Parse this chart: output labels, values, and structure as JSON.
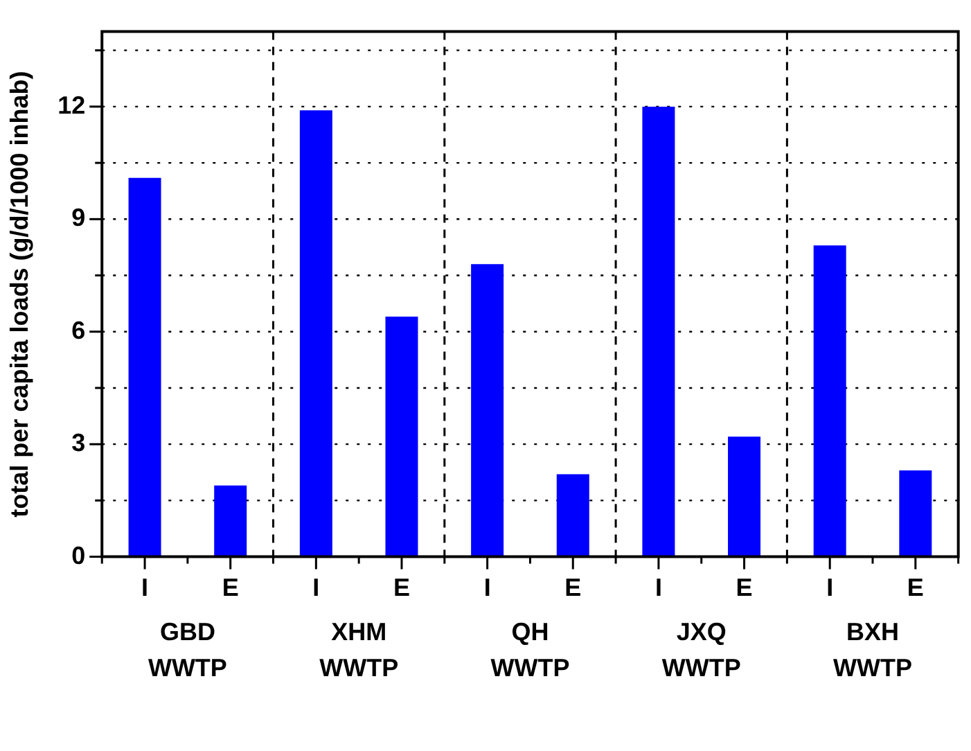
{
  "chart_data": {
    "type": "bar",
    "ylabel": "total per capita loads (g/d/1000 inhab)",
    "categories": [
      "GBD WWTP",
      "XHM WWTP",
      "QH WWTP",
      "JXQ WWTP",
      "BXH WWTP"
    ],
    "series": [
      {
        "name": "I",
        "color": "#0000ff",
        "values": [
          10.1,
          11.9,
          7.8,
          12.0,
          8.3
        ]
      },
      {
        "name": "E",
        "color": "#0000ff",
        "values": [
          1.9,
          6.4,
          2.2,
          3.2,
          2.3
        ]
      }
    ],
    "ylim": [
      0,
      14
    ],
    "yticks": [
      0,
      {
        "value": 1.5,
        "label": null
      },
      3,
      {
        "value": 4.5,
        "label": null
      },
      6,
      {
        "value": 7.5,
        "label": null
      },
      9,
      {
        "value": 10.5,
        "label": null
      },
      12,
      {
        "value": 13.5,
        "label": null
      }
    ],
    "grid": true
  }
}
